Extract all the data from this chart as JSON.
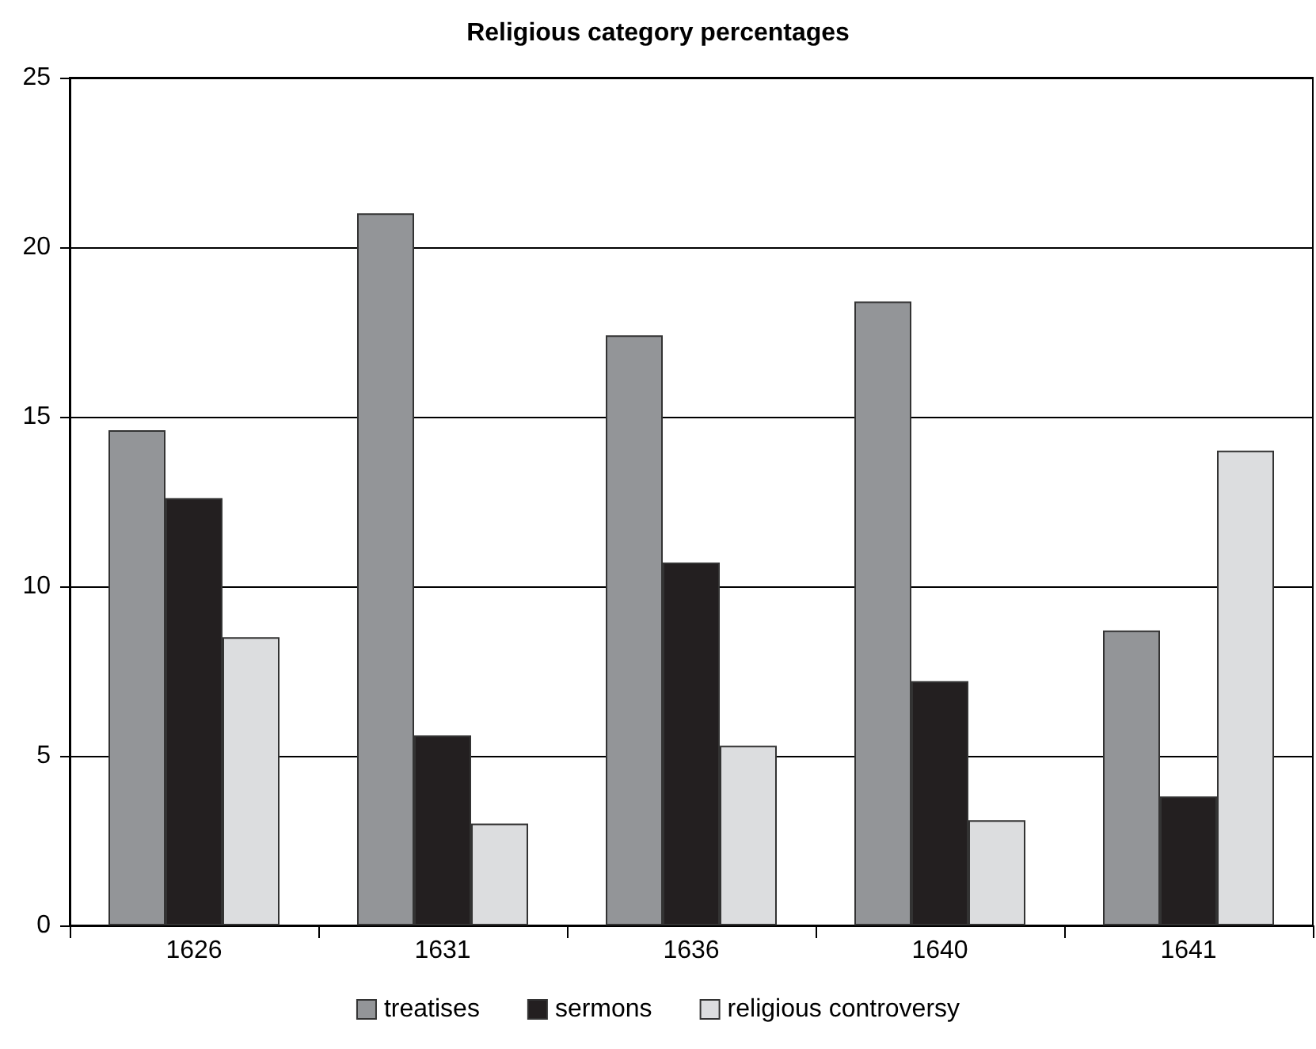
{
  "chart_data": {
    "type": "bar",
    "title": "Religious category percentages",
    "categories": [
      "1626",
      "1631",
      "1636",
      "1640",
      "1641"
    ],
    "series": [
      {
        "name": "treatises",
        "color": "#939598",
        "values": [
          14.6,
          21.0,
          17.4,
          18.4,
          8.7
        ]
      },
      {
        "name": "sermons",
        "color": "#231f20",
        "values": [
          12.6,
          5.6,
          10.7,
          7.2,
          3.8
        ]
      },
      {
        "name": "religious controversy",
        "color": "#dcdddf",
        "values": [
          8.5,
          3.0,
          5.3,
          3.1,
          14.0
        ]
      }
    ],
    "ylim": [
      0,
      25
    ],
    "yticks": [
      0,
      5,
      10,
      15,
      20,
      25
    ],
    "grid": "y",
    "legend": "bottom"
  }
}
